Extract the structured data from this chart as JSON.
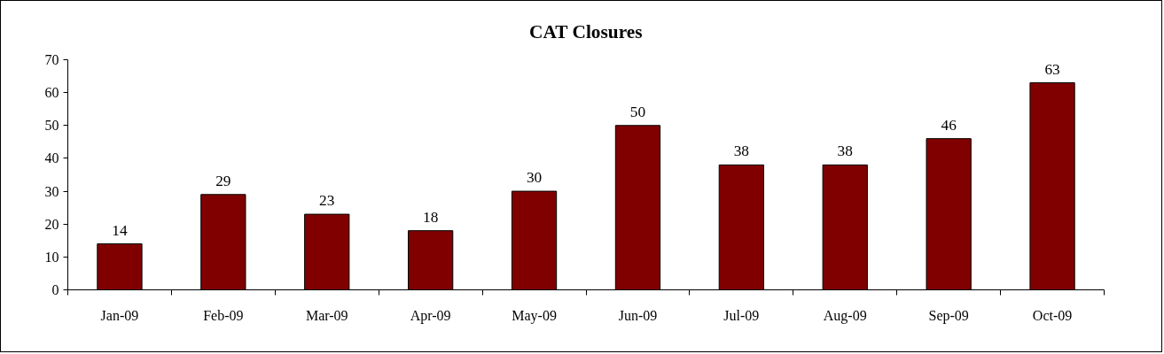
{
  "chart_data": {
    "type": "bar",
    "title": "CAT Closures",
    "categories": [
      "Jan-09",
      "Feb-09",
      "Mar-09",
      "Apr-09",
      "May-09",
      "Jun-09",
      "Jul-09",
      "Aug-09",
      "Sep-09",
      "Oct-09"
    ],
    "values": [
      14,
      29,
      23,
      18,
      30,
      50,
      38,
      38,
      46,
      63
    ],
    "color": "#800000",
    "ylim": [
      0,
      70
    ],
    "yticks": [
      0,
      10,
      20,
      30,
      40,
      50,
      60,
      70
    ],
    "grid": false,
    "data_labels": true
  }
}
